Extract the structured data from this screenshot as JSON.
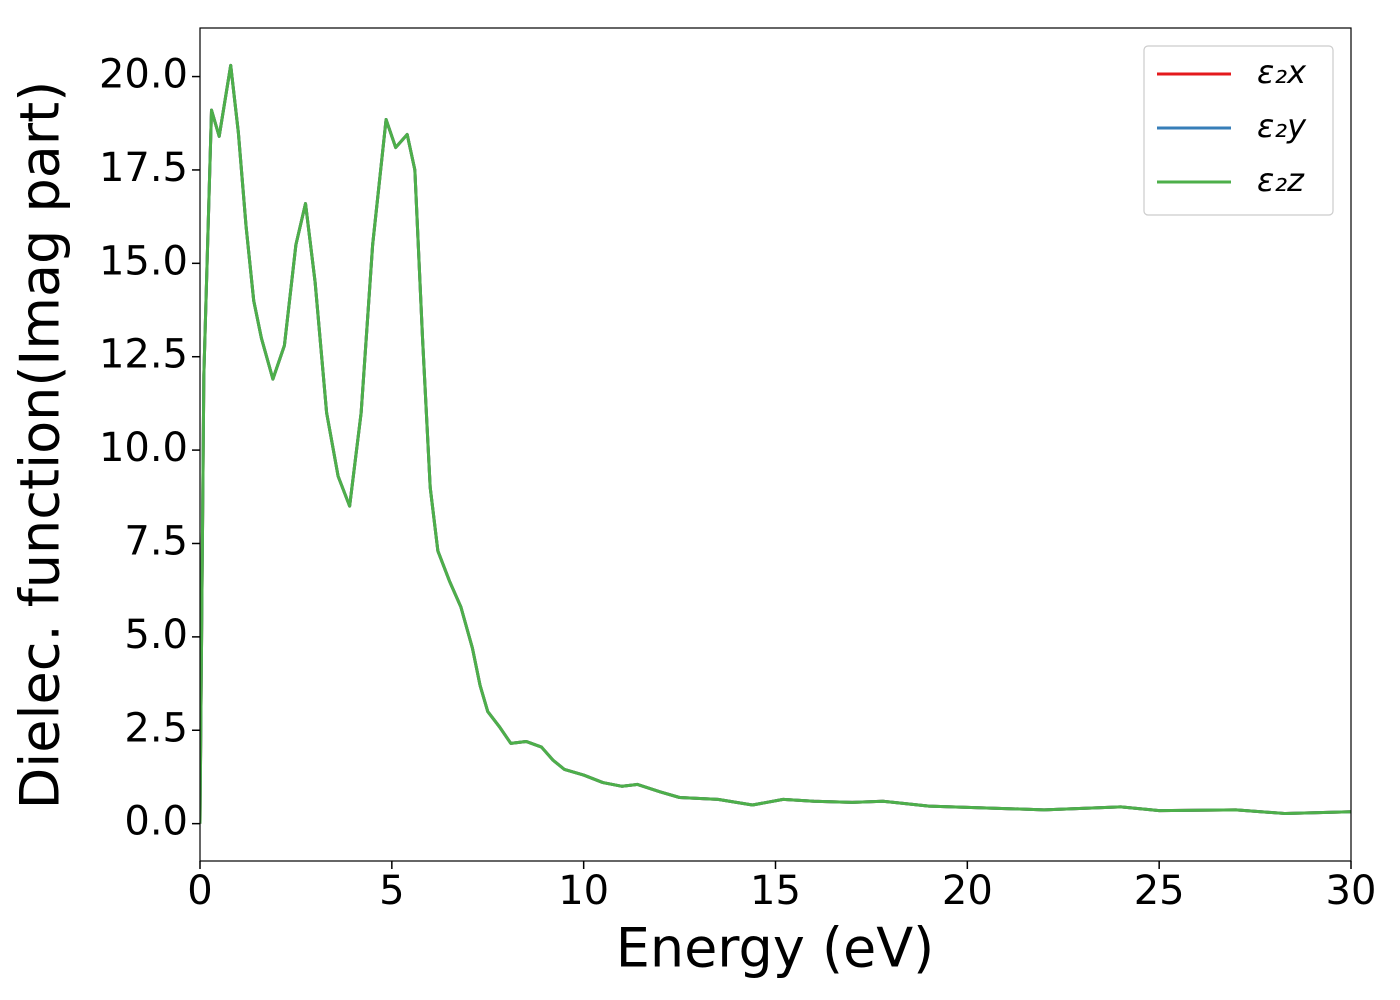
{
  "chart_data": {
    "type": "line",
    "xlabel": "Energy (eV)",
    "ylabel": "Dielec. function(Imag part)",
    "x": [
      0,
      0.1,
      0.3,
      0.5,
      0.8,
      1.0,
      1.2,
      1.4,
      1.6,
      1.9,
      2.2,
      2.5,
      2.75,
      3.0,
      3.3,
      3.6,
      3.9,
      4.2,
      4.5,
      4.85,
      5.1,
      5.4,
      5.6,
      5.8,
      6.0,
      6.2,
      6.5,
      6.8,
      7.1,
      7.3,
      7.5,
      7.8,
      8.1,
      8.5,
      8.9,
      9.2,
      9.5,
      10,
      10.5,
      11,
      11.4,
      12,
      12.5,
      13.5,
      14.4,
      15.2,
      16,
      17,
      17.8,
      19,
      20.5,
      22,
      24,
      25,
      27,
      28.3,
      30
    ],
    "series": [
      {
        "name": "ε₂x",
        "color": "#e41a1c",
        "values": [
          0,
          12,
          19.1,
          18.4,
          20.3,
          18.5,
          16,
          14,
          13,
          11.9,
          12.8,
          15.5,
          16.6,
          14.5,
          11,
          9.3,
          8.5,
          11,
          15.5,
          18.85,
          18.1,
          18.45,
          17.5,
          13,
          9,
          7.3,
          6.5,
          5.8,
          4.7,
          3.7,
          3.0,
          2.6,
          2.15,
          2.2,
          2.05,
          1.7,
          1.45,
          1.3,
          1.1,
          1.0,
          1.05,
          0.85,
          0.7,
          0.65,
          0.5,
          0.65,
          0.6,
          0.57,
          0.6,
          0.47,
          0.42,
          0.37,
          0.45,
          0.35,
          0.37,
          0.27,
          0.32
        ]
      },
      {
        "name": "ε₂y",
        "color": "#377eb8",
        "values": [
          0,
          12,
          19.1,
          18.4,
          20.3,
          18.5,
          16,
          14,
          13,
          11.9,
          12.8,
          15.5,
          16.6,
          14.5,
          11,
          9.3,
          8.5,
          11,
          15.5,
          18.85,
          18.1,
          18.45,
          17.5,
          13,
          9,
          7.3,
          6.5,
          5.8,
          4.7,
          3.7,
          3.0,
          2.6,
          2.15,
          2.2,
          2.05,
          1.7,
          1.45,
          1.3,
          1.1,
          1.0,
          1.05,
          0.85,
          0.7,
          0.65,
          0.5,
          0.65,
          0.6,
          0.57,
          0.6,
          0.47,
          0.42,
          0.37,
          0.45,
          0.35,
          0.37,
          0.27,
          0.32
        ]
      },
      {
        "name": "ε₂z",
        "color": "#4daf4a",
        "values": [
          0,
          12,
          19.1,
          18.4,
          20.3,
          18.5,
          16,
          14,
          13,
          11.9,
          12.8,
          15.5,
          16.6,
          14.5,
          11,
          9.3,
          8.5,
          11,
          15.5,
          18.85,
          18.1,
          18.45,
          17.5,
          13,
          9,
          7.3,
          6.5,
          5.8,
          4.7,
          3.7,
          3.0,
          2.6,
          2.15,
          2.2,
          2.05,
          1.7,
          1.45,
          1.3,
          1.1,
          1.0,
          1.05,
          0.85,
          0.7,
          0.65,
          0.5,
          0.65,
          0.6,
          0.57,
          0.6,
          0.47,
          0.42,
          0.37,
          0.45,
          0.35,
          0.37,
          0.27,
          0.32
        ]
      }
    ],
    "xlim": [
      0,
      30
    ],
    "xticks": [
      0,
      5,
      10,
      15,
      20,
      25,
      30
    ],
    "ylim": [
      -1.0,
      21.3
    ],
    "yticks": [
      {
        "value": 0,
        "label": "0.0"
      },
      {
        "value": 2.5,
        "label": "2.5"
      },
      {
        "value": 5,
        "label": "5.0"
      },
      {
        "value": 7.5,
        "label": "7.5"
      },
      {
        "value": 10,
        "label": "10.0"
      },
      {
        "value": 12.5,
        "label": "12.5"
      },
      {
        "value": 15,
        "label": "15.0"
      },
      {
        "value": 17.5,
        "label": "17.5"
      },
      {
        "value": 20,
        "label": "20.0"
      }
    ],
    "grid": false,
    "legend": "upper right"
  }
}
